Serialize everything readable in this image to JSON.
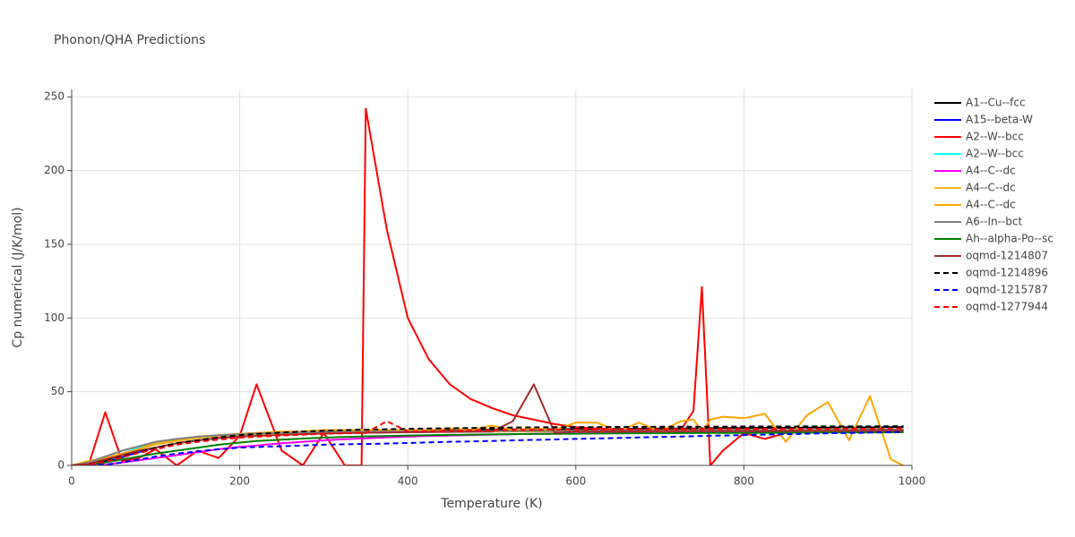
{
  "chart_data": {
    "type": "line",
    "title": "Phonon/QHA Predictions",
    "x_label": "Temperature (K)",
    "y_label": "Cp numerical (J/K/mol)",
    "x": [
      0,
      20,
      40,
      60,
      80,
      100,
      125,
      150,
      175,
      200,
      220,
      250,
      275,
      300,
      325,
      345,
      350,
      375,
      400,
      425,
      450,
      475,
      500,
      525,
      550,
      575,
      600,
      625,
      650,
      675,
      700,
      725,
      740,
      750,
      760,
      775,
      800,
      825,
      850,
      875,
      900,
      925,
      950,
      975,
      990
    ],
    "xlim": [
      0,
      1000
    ],
    "ylim": [
      0,
      255
    ],
    "xticks": [
      0,
      200,
      400,
      600,
      800,
      1000
    ],
    "yticks": [
      0,
      50,
      100,
      150,
      200,
      250
    ],
    "grid": true,
    "legend": "right",
    "series": [
      {
        "name": "A1--Cu--fcc",
        "color": "#000000",
        "dash": false,
        "values": [
          0,
          0.5,
          3,
          7.5,
          11.5,
          14.5,
          17,
          19,
          20.3,
          21.2,
          21.8,
          22.4,
          22.8,
          23.1,
          23.3,
          23.5,
          23.5,
          23.7,
          23.9,
          24,
          24.1,
          24.2,
          24.3,
          24.4,
          24.5,
          24.6,
          24.7,
          24.8,
          24.8,
          24.9,
          25,
          25.1,
          25.1,
          25.2,
          25.2,
          25.3,
          25.4,
          25.5,
          25.5,
          25.6,
          25.7,
          25.8,
          25.8,
          25.9,
          26
        ]
      },
      {
        "name": "A15--beta-W",
        "color": "#0000ff",
        "dash": false,
        "values": [
          0,
          0.3,
          2,
          5.5,
          9,
          12,
          15,
          17,
          18.5,
          19.6,
          20.2,
          20.9,
          21.3,
          21.7,
          22,
          22.2,
          22.2,
          22.4,
          22.6,
          22.7,
          22.8,
          22.9,
          23,
          23.1,
          23.2,
          23.2,
          23.3,
          23.4,
          23.4,
          23.5,
          23.5,
          23.6,
          23.6,
          23.6,
          23.7,
          23.7,
          23.8,
          23.8,
          23.9,
          23.9,
          24,
          24,
          24.1,
          24.1,
          24.2
        ]
      },
      {
        "name": "A2--W--bcc",
        "color": "#ff0000",
        "dash": false,
        "values": [
          0,
          0,
          36,
          3,
          5,
          11,
          0,
          10,
          5,
          20,
          55,
          10,
          0,
          22,
          0,
          0,
          242,
          160,
          100,
          72,
          55,
          45,
          39,
          34,
          31,
          28,
          26,
          25,
          24,
          24,
          24,
          24,
          37,
          121,
          0,
          10,
          22,
          18,
          22,
          23,
          23,
          24,
          24,
          24,
          24
        ]
      },
      {
        "name": "A2--W--bcc",
        "color": "#00ffff",
        "dash": false,
        "values": [
          0,
          0.5,
          4,
          8,
          12,
          15,
          17.5,
          19,
          20,
          20.7,
          21.1,
          21.6,
          21.9,
          22.1,
          22.3,
          22.4,
          22.4,
          22.6,
          22.7,
          22.8,
          22.9,
          23,
          23,
          23.1,
          23.2,
          23.2,
          23.3,
          23.3,
          23.4,
          23.4,
          23.5,
          23.5,
          23.5,
          23.6,
          23.6,
          23.6,
          23.7,
          23.7,
          23.8,
          23.8,
          23.8,
          23.9,
          23.9,
          24,
          24
        ]
      },
      {
        "name": "A4--C--dc",
        "color": "#ff00ff",
        "dash": false,
        "values": [
          0,
          0,
          0.5,
          2,
          3.5,
          5,
          7,
          9,
          11,
          12.5,
          13.5,
          15,
          16,
          17,
          17.8,
          18.3,
          18.4,
          19,
          19.5,
          20,
          20.3,
          20.6,
          20.9,
          21.2,
          21.4,
          21.6,
          21.8,
          22,
          22.1,
          22.3,
          22.4,
          22.5,
          22.6,
          22.6,
          22.7,
          22.8,
          22.9,
          23,
          23.1,
          23.2,
          23.3,
          23.4,
          23.4,
          23.5,
          23.5
        ]
      },
      {
        "name": "A4--C--dc",
        "color": "#f4b51c",
        "dash": false,
        "values": [
          0,
          2.5,
          5,
          8,
          11,
          14,
          16.5,
          18.5,
          19.8,
          20.7,
          21.2,
          21.7,
          22,
          22.2,
          22.4,
          22.5,
          22.5,
          22.6,
          22.7,
          22.8,
          22.8,
          22.9,
          22.9,
          23,
          23,
          23,
          23.1,
          23.1,
          23.1,
          23.2,
          23.2,
          23.2,
          23.2,
          23.3,
          23.3,
          23.3,
          23.3,
          23.4,
          23.4,
          23.4,
          23.4,
          23.5,
          23.5,
          23.5,
          23.5
        ]
      },
      {
        "name": "A4--C--dc",
        "color": "#ffa500",
        "dash": false,
        "values": [
          0,
          3,
          5,
          8,
          11,
          15.5,
          17.5,
          19.5,
          20.5,
          21.5,
          22,
          23,
          23,
          24,
          24,
          24,
          24,
          24,
          24,
          24,
          25,
          24,
          27,
          24,
          25,
          24,
          29,
          29,
          23,
          29,
          23,
          30,
          31,
          23,
          31,
          33,
          32,
          35,
          16,
          34,
          43,
          17,
          47,
          4,
          0
        ]
      },
      {
        "name": "A6--In--bct",
        "color": "#808080",
        "dash": false,
        "values": [
          0,
          2,
          6,
          10,
          13,
          16,
          18,
          19.5,
          20.5,
          21.2,
          21.6,
          22,
          22.3,
          22.5,
          22.7,
          22.8,
          22.8,
          22.9,
          23,
          23.1,
          23.2,
          23.2,
          23.3,
          23.3,
          23.4,
          23.4,
          23.5,
          23.5,
          23.6,
          23.6,
          23.7,
          23.7,
          23.7,
          23.8,
          23.8,
          23.8,
          23.9,
          23.9,
          24,
          24,
          24.1,
          24.1,
          24.2,
          24.2,
          24.3
        ]
      },
      {
        "name": "Ah--alpha-Po--sc",
        "color": "#008000",
        "dash": false,
        "values": [
          0,
          0.5,
          2,
          4,
          6,
          8,
          10,
          12,
          14,
          15.5,
          16.5,
          17.5,
          18.2,
          18.8,
          19.3,
          19.6,
          19.7,
          20,
          20.3,
          20.5,
          20.7,
          20.9,
          21,
          21.2,
          21.3,
          21.4,
          21.5,
          21.6,
          21.7,
          21.8,
          21.8,
          21.9,
          21.9,
          22,
          22,
          22,
          22.1,
          22.1,
          22.2,
          22.2,
          22.3,
          22.3,
          22.4,
          22.4,
          22.5
        ]
      },
      {
        "name": "oqmd-1214807",
        "color": "#a52a2a",
        "dash": false,
        "values": [
          0,
          1,
          4,
          7,
          10,
          12,
          15,
          17,
          18.5,
          19.5,
          20,
          20.7,
          21.2,
          21.6,
          21.9,
          22.1,
          22.1,
          22.3,
          22.5,
          22.6,
          22.7,
          22.8,
          22.9,
          30,
          55,
          22,
          23,
          23,
          23.1,
          23.1,
          23.2,
          23.2,
          23.2,
          23.3,
          23.3,
          23.3,
          23.4,
          23.4,
          23.4,
          23.5,
          23.5,
          23.5,
          23.6,
          23.6,
          23.6
        ]
      },
      {
        "name": "oqmd-1214896",
        "color": "#000000",
        "dash": true,
        "values": [
          0,
          0.5,
          3,
          6,
          9,
          12,
          15,
          17,
          19,
          20.5,
          21.3,
          22.3,
          23,
          23.5,
          23.9,
          24.2,
          24.2,
          24.5,
          24.8,
          25,
          25.2,
          25.4,
          25.5,
          25.7,
          25.8,
          25.9,
          26,
          26,
          26.1,
          26.1,
          26.2,
          26.2,
          26.2,
          26.3,
          26.3,
          26.3,
          26.4,
          26.4,
          26.4,
          26.5,
          26.5,
          26.5,
          26.5,
          26.6,
          26.6
        ]
      },
      {
        "name": "oqmd-1215787",
        "color": "#0000ff",
        "dash": true,
        "values": [
          0,
          0,
          0.5,
          2,
          4,
          6,
          8,
          9.5,
          11,
          12,
          12.5,
          13,
          13.5,
          14,
          14.3,
          14.5,
          14.5,
          14.8,
          15.2,
          15.6,
          16,
          16.3,
          16.6,
          17,
          17.3,
          17.6,
          18,
          18.3,
          18.6,
          19,
          19.3,
          19.6,
          19.8,
          20,
          20.1,
          20.3,
          20.6,
          20.9,
          21.2,
          21.5,
          21.8,
          22,
          22.3,
          22.5,
          22.7
        ]
      },
      {
        "name": "oqmd-1277944",
        "color": "#ff0000",
        "dash": true,
        "values": [
          0,
          0.5,
          2.5,
          5.5,
          8.5,
          11,
          14,
          16,
          17.5,
          18.8,
          19.5,
          20.3,
          20.9,
          21.4,
          21.8,
          22,
          22,
          30,
          23,
          23.3,
          23.5,
          23.7,
          23.9,
          24,
          24.1,
          24.2,
          24.3,
          24.4,
          24.4,
          24.5,
          24.5,
          24.6,
          24.6,
          24.6,
          24.7,
          24.7,
          24.7,
          24.8,
          24.8,
          24.8,
          24.9,
          24.9,
          24.9,
          25,
          25
        ]
      }
    ]
  }
}
